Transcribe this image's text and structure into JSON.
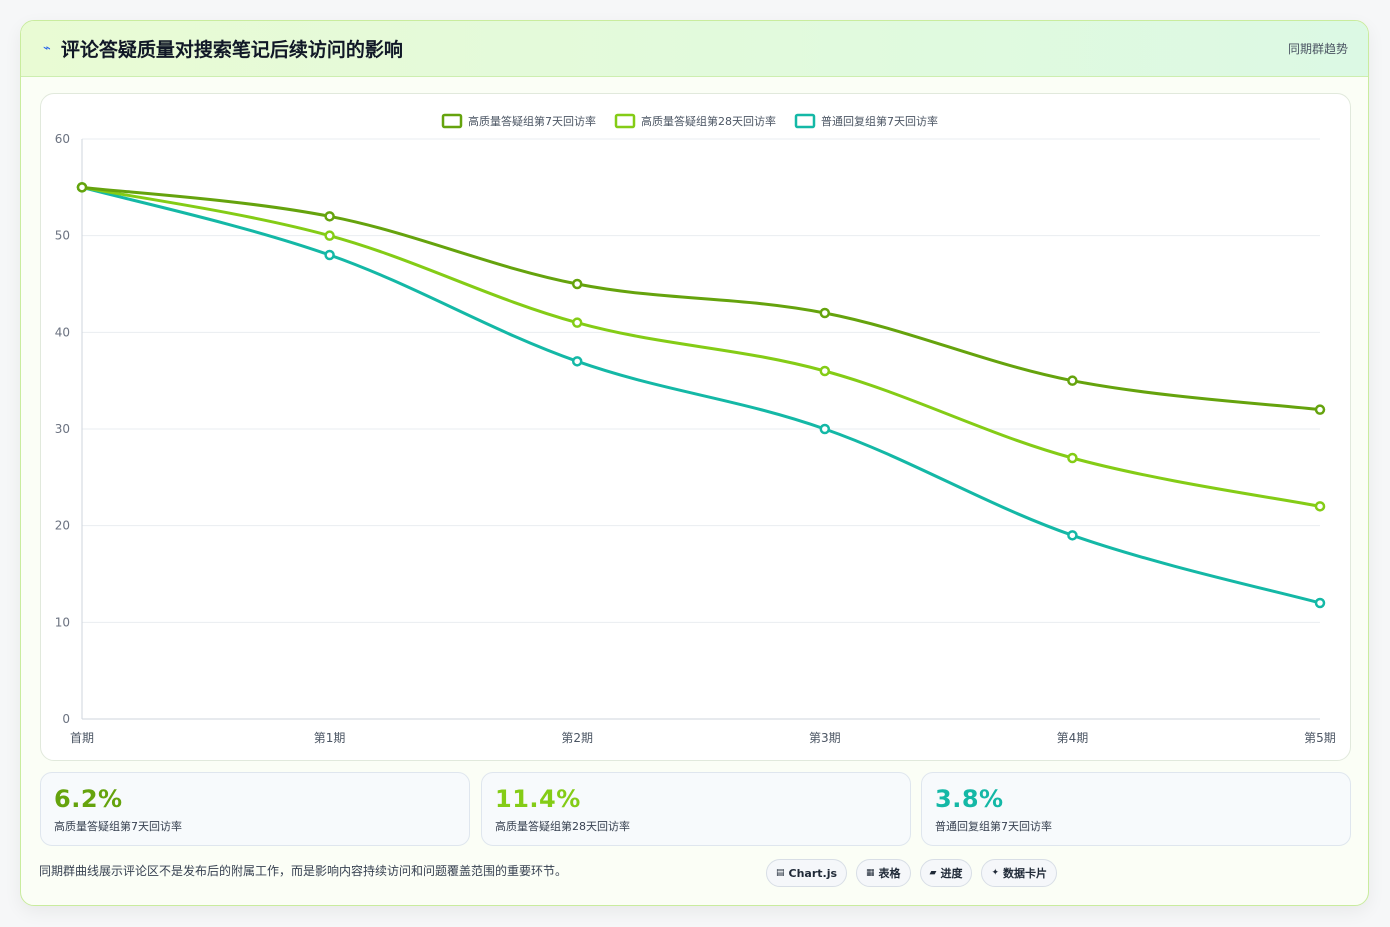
{
  "header": {
    "title": "评论答疑质量对搜索笔记后续访问的影响",
    "tag": "同期群趋势",
    "icon": "lightning-icon"
  },
  "chart_data": {
    "type": "line",
    "title": "",
    "xlabel": "",
    "ylabel": "",
    "categories": [
      "首期",
      "第1期",
      "第2期",
      "第3期",
      "第4期",
      "第5期"
    ],
    "ylim": [
      0,
      60
    ],
    "yticks": [
      0,
      10,
      20,
      30,
      40,
      50,
      60
    ],
    "grid": true,
    "legend_position": "top",
    "series": [
      {
        "name": "高质量答疑组第7天回访率",
        "color": "#65a30d",
        "values": [
          55,
          52,
          45,
          42,
          35,
          32
        ]
      },
      {
        "name": "高质量答疑组第28天回访率",
        "color": "#84cc16",
        "values": [
          55,
          50,
          41,
          36,
          27,
          22
        ]
      },
      {
        "name": "普通回复组第7天回访率",
        "color": "#14b8a6",
        "values": [
          55,
          48,
          37,
          30,
          19,
          12
        ]
      }
    ]
  },
  "stats": [
    {
      "value": "6.2%",
      "label": "高质量答疑组第7天回访率",
      "color": "#65a30d"
    },
    {
      "value": "11.4%",
      "label": "高质量答疑组第28天回访率",
      "color": "#84cc16"
    },
    {
      "value": "3.8%",
      "label": "普通回复组第7天回访率",
      "color": "#14b8a6"
    }
  ],
  "footer": {
    "note": "同期群曲线展示评论区不是发布后的附属工作，而是影响内容持续访问和问题覆盖范围的重要环节。",
    "pills": [
      {
        "icon": "▤",
        "label": "Chart.js"
      },
      {
        "icon": "▦",
        "label": "表格"
      },
      {
        "icon": "▰",
        "label": "进度"
      },
      {
        "icon": "✦",
        "label": "数据卡片"
      }
    ]
  }
}
